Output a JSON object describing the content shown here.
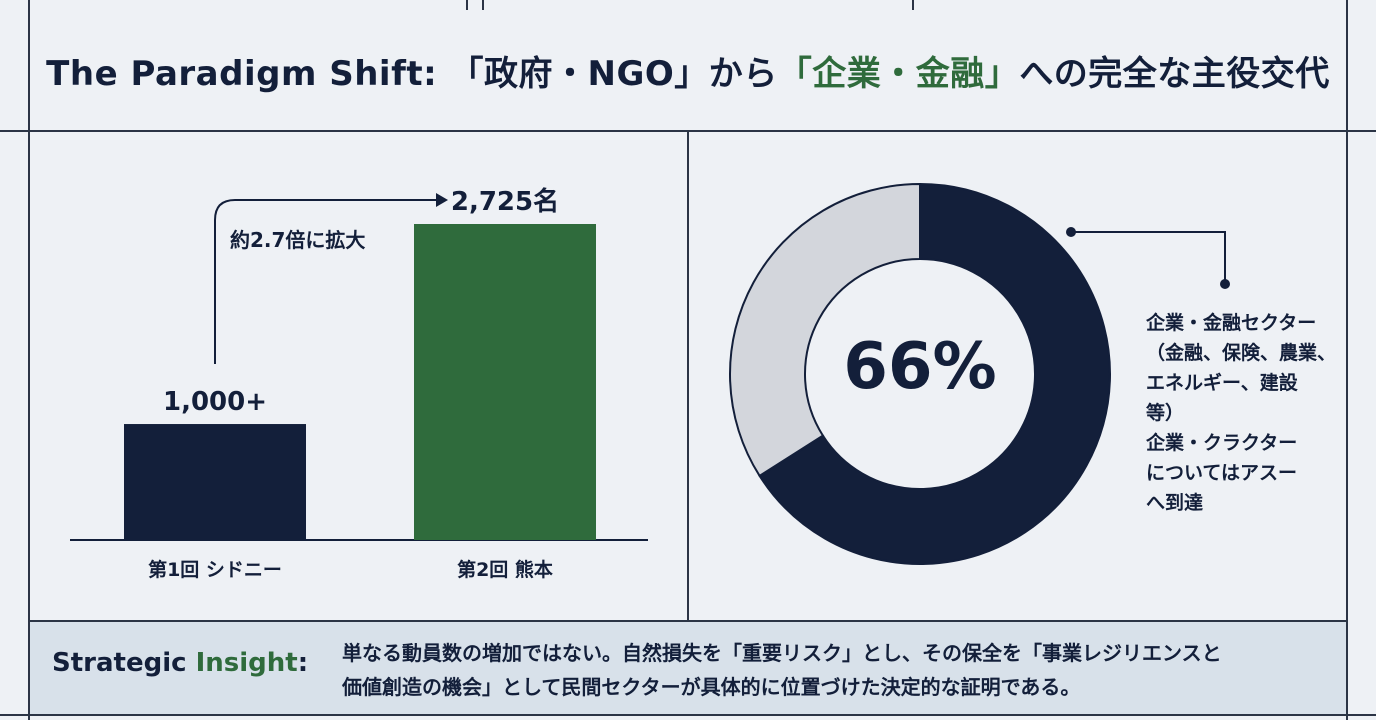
{
  "header": {
    "title_prefix": "The Paradigm Shift: 「政府・NGO」から",
    "title_green": "「企業・金融」",
    "title_suffix": "への完全な主役交代"
  },
  "chart_data": [
    {
      "type": "bar",
      "categories": [
        "第1回 シドニー",
        "第2回 熊本"
      ],
      "values": [
        1000,
        2725
      ],
      "data_labels": [
        "1,000+",
        "2,725名"
      ],
      "annotation": "約2.7倍に拡大",
      "colors": [
        "#131f3a",
        "#2f6b3c"
      ]
    },
    {
      "type": "pie",
      "style": "donut",
      "values": [
        66,
        34
      ],
      "center_label": "66%",
      "colors": [
        "#131f3a",
        "#d3d6dc"
      ],
      "callout_lines": [
        "企業・金融セクター",
        "（金融、保険、農業、",
        "エネルギー、建設",
        "等）",
        "企業・クラクター",
        "についてはアスー",
        "へ到達"
      ]
    }
  ],
  "insight": {
    "head_dark": "Strategic",
    "head_green": "Insight",
    "colon": ":",
    "line1": "単なる動員数の増加ではない。自然損失を「重要リスク」とし、その保全を「事業レジリエンスと",
    "line2": "価値創造の機会」として民間セクターが具体的に位置づけた決定的な証明である。"
  },
  "colors": {
    "navy": "#131f3a",
    "green": "#2f6b3c",
    "grey": "#d3d6dc",
    "panel_bg": "#eef1f5",
    "insight_bg": "#d8e1ea"
  }
}
